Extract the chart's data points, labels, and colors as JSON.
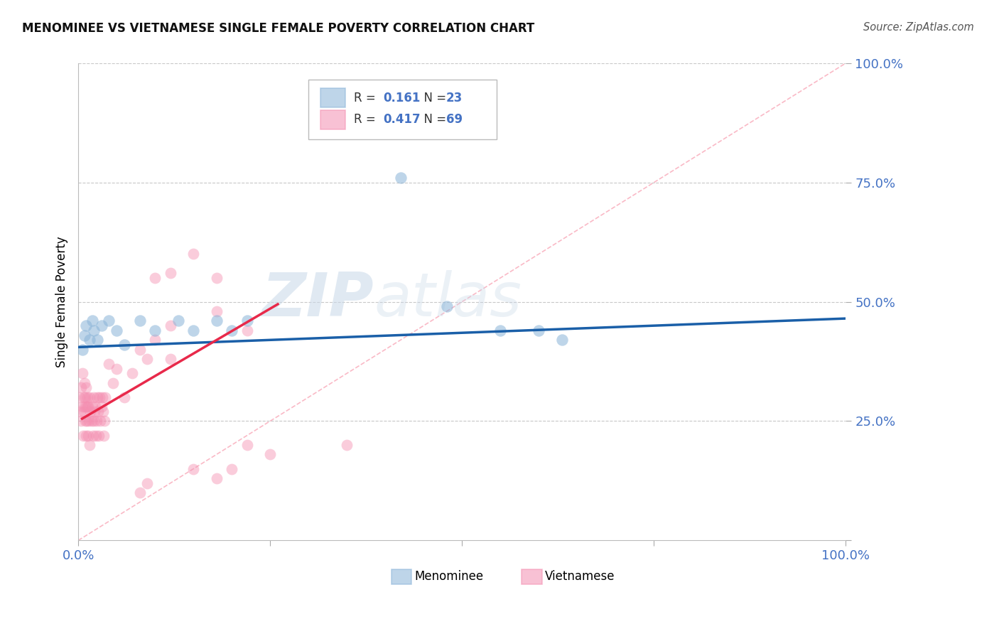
{
  "title": "MENOMINEE VS VIETNAMESE SINGLE FEMALE POVERTY CORRELATION CHART",
  "source": "Source: ZipAtlas.com",
  "ylabel": "Single Female Poverty",
  "legend_menominee": "Menominee",
  "legend_vietnamese": "Vietnamese",
  "R_menominee": "0.161",
  "N_menominee": "23",
  "R_vietnamese": "0.417",
  "N_vietnamese": "69",
  "color_menominee": "#8ab4d8",
  "color_vietnamese": "#f48fb1",
  "color_menominee_line": "#1a5fa8",
  "color_vietnamese_line": "#e8294a",
  "color_diagonal": "#f9a8b8",
  "watermark_zip": "ZIP",
  "watermark_atlas": "atlas",
  "xlim": [
    0.0,
    1.0
  ],
  "ylim": [
    0.0,
    1.0
  ],
  "background_color": "#ffffff",
  "grid_color": "#c8c8c8",
  "menominee_x": [
    0.005,
    0.008,
    0.01,
    0.015,
    0.018,
    0.02,
    0.025,
    0.03,
    0.04,
    0.05,
    0.06,
    0.08,
    0.1,
    0.13,
    0.15,
    0.18,
    0.2,
    0.22,
    0.48,
    0.55,
    0.6,
    0.63,
    0.42
  ],
  "menominee_y": [
    0.4,
    0.43,
    0.45,
    0.42,
    0.46,
    0.44,
    0.42,
    0.45,
    0.46,
    0.44,
    0.41,
    0.46,
    0.44,
    0.46,
    0.44,
    0.46,
    0.44,
    0.46,
    0.49,
    0.44,
    0.44,
    0.42,
    0.76
  ],
  "viet_x": [
    0.002,
    0.003,
    0.004,
    0.004,
    0.005,
    0.005,
    0.006,
    0.007,
    0.007,
    0.008,
    0.008,
    0.009,
    0.009,
    0.01,
    0.01,
    0.01,
    0.011,
    0.012,
    0.012,
    0.013,
    0.013,
    0.014,
    0.015,
    0.015,
    0.016,
    0.017,
    0.018,
    0.019,
    0.02,
    0.02,
    0.021,
    0.022,
    0.023,
    0.024,
    0.025,
    0.026,
    0.027,
    0.028,
    0.029,
    0.03,
    0.031,
    0.032,
    0.033,
    0.034,
    0.035,
    0.04,
    0.045,
    0.05,
    0.06,
    0.07,
    0.08,
    0.09,
    0.1,
    0.12,
    0.15,
    0.18,
    0.2,
    0.22,
    0.1,
    0.12,
    0.15,
    0.18,
    0.12,
    0.18,
    0.22,
    0.08,
    0.09,
    0.25,
    0.35
  ],
  "viet_y": [
    0.3,
    0.27,
    0.32,
    0.25,
    0.28,
    0.35,
    0.22,
    0.3,
    0.27,
    0.28,
    0.33,
    0.25,
    0.3,
    0.22,
    0.28,
    0.32,
    0.25,
    0.28,
    0.3,
    0.22,
    0.28,
    0.25,
    0.2,
    0.3,
    0.27,
    0.25,
    0.28,
    0.22,
    0.25,
    0.3,
    0.27,
    0.28,
    0.22,
    0.25,
    0.3,
    0.27,
    0.22,
    0.3,
    0.25,
    0.28,
    0.3,
    0.27,
    0.22,
    0.25,
    0.3,
    0.37,
    0.33,
    0.36,
    0.3,
    0.35,
    0.4,
    0.38,
    0.55,
    0.56,
    0.6,
    0.55,
    0.15,
    0.2,
    0.42,
    0.38,
    0.15,
    0.13,
    0.45,
    0.48,
    0.44,
    0.1,
    0.12,
    0.18,
    0.2
  ],
  "blue_line_x": [
    0.0,
    1.0
  ],
  "blue_line_y": [
    0.405,
    0.465
  ],
  "pink_line_x": [
    0.005,
    0.26
  ],
  "pink_line_y": [
    0.255,
    0.495
  ]
}
